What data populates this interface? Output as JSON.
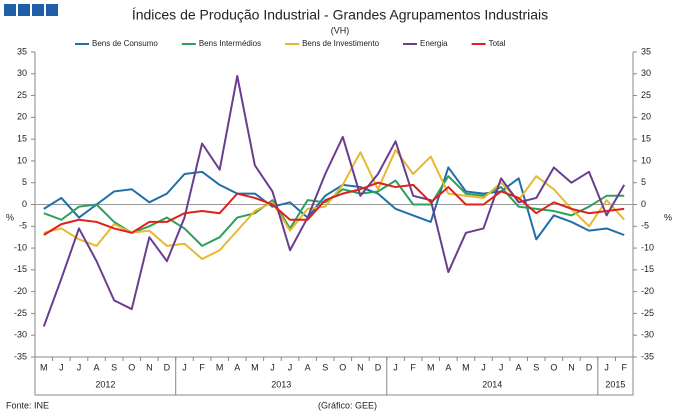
{
  "chart_data": {
    "type": "line",
    "title": "Índices de Produção Industrial - Grandes Agrupamentos Industriais",
    "subtitle": "(VH)",
    "ylabel": "%",
    "y2label": "%",
    "source": "Fonte: INE",
    "credit": "(Gráfico: GEE)",
    "categories": [
      "M",
      "J",
      "J",
      "A",
      "S",
      "O",
      "N",
      "D",
      "J",
      "F",
      "M",
      "A",
      "M",
      "J",
      "J",
      "A",
      "S",
      "O",
      "N",
      "D",
      "J",
      "F",
      "M",
      "A",
      "M",
      "J",
      "J",
      "A",
      "S",
      "O",
      "N",
      "D",
      "J",
      "F"
    ],
    "x_groups": [
      {
        "label": "2012",
        "count": 8
      },
      {
        "label": "2013",
        "count": 12
      },
      {
        "label": "2014",
        "count": 12
      },
      {
        "label": "2015",
        "count": 2
      }
    ],
    "ylim": [
      -35,
      35
    ],
    "yticks": [
      -35,
      -30,
      -25,
      -20,
      -15,
      -10,
      -5,
      0,
      5,
      10,
      15,
      20,
      25,
      30,
      35
    ],
    "y2lim": [
      -35,
      35
    ],
    "y2ticks": [
      -35,
      -30,
      -25,
      -20,
      -15,
      -10,
      -5,
      0,
      5,
      10,
      15,
      20,
      25,
      30,
      35
    ],
    "series": [
      {
        "name": "Bens de Consumo",
        "color": "#1f6fa8",
        "values": [
          -1,
          1.5,
          -3,
          0,
          3,
          3.5,
          0.5,
          2.5,
          7,
          7.5,
          4.5,
          2.5,
          2.5,
          -0.5,
          0.5,
          -3,
          2,
          4.5,
          4,
          2.5,
          -1,
          -2.5,
          -4,
          8.5,
          3,
          2.5,
          3,
          6,
          -8,
          -2.5,
          -4,
          -6,
          -5.5,
          -7
        ]
      },
      {
        "name": "Bens Intermédios",
        "color": "#2ca05a",
        "values": [
          -2,
          -3.5,
          -0.5,
          0,
          -4,
          -6.5,
          -5,
          -3,
          -5.5,
          -9.5,
          -7.5,
          -3,
          -2,
          1,
          -5.5,
          1,
          0.5,
          3.5,
          2.5,
          3,
          5.5,
          0,
          0,
          6.5,
          2.5,
          2,
          4,
          -0.5,
          -1,
          -1.5,
          -2.5,
          -0.5,
          2,
          2
        ]
      },
      {
        "name": "Bens de Investimento",
        "color": "#e8b830",
        "values": [
          -6.5,
          -5.5,
          -8,
          -9.5,
          -4.5,
          -6.5,
          -6,
          -9.5,
          -9,
          -12.5,
          -10.5,
          -6,
          -1.5,
          0.5,
          -6,
          -1,
          -0.5,
          4.5,
          12,
          3.5,
          12.5,
          7,
          11,
          2.5,
          2,
          1.5,
          5,
          1,
          6.5,
          3.5,
          -1,
          -5,
          1,
          -3.5
        ]
      },
      {
        "name": "Energia",
        "color": "#6a3d8f",
        "values": [
          -28,
          -17,
          -5.5,
          -13,
          -22,
          -24,
          -7.5,
          -13,
          -3,
          14,
          8,
          29.5,
          9,
          3,
          -10.5,
          -3,
          7,
          15.5,
          2,
          7,
          14.5,
          2,
          1,
          -15.5,
          -6.5,
          -5.5,
          6,
          0.5,
          1.5,
          8.5,
          5,
          7.5,
          -2.5,
          4.5
        ]
      },
      {
        "name": "Total",
        "color": "#e0201a",
        "values": [
          -7,
          -4.5,
          -3.5,
          -4,
          -5.5,
          -6.5,
          -4,
          -4,
          -2,
          -1.5,
          -2,
          2.5,
          1.5,
          0,
          -3.5,
          -3.5,
          1,
          2.5,
          3.5,
          5,
          4,
          4.5,
          0.5,
          4,
          0,
          0,
          3,
          1.5,
          -2,
          0.5,
          -1,
          -2,
          -1.5,
          -1
        ]
      }
    ]
  }
}
